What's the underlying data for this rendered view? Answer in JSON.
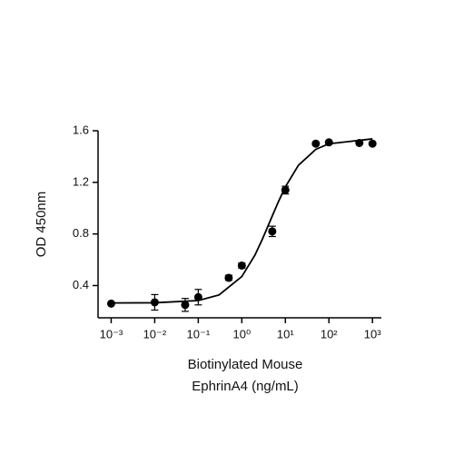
{
  "chart_data": {
    "type": "scatter",
    "xscale": "log",
    "xlabel": [
      "Biotinylated Mouse",
      "EphrinA4 (ng/mL)"
    ],
    "ylabel": "OD 450nm",
    "xlim": [
      0.0005,
      1600
    ],
    "ylim": [
      0.15,
      1.6
    ],
    "xticks": [
      {
        "value": 0.001,
        "label": "10⁻³"
      },
      {
        "value": 0.01,
        "label": "10⁻²"
      },
      {
        "value": 0.1,
        "label": "10⁻¹"
      },
      {
        "value": 1,
        "label": "10⁰"
      },
      {
        "value": 10,
        "label": "10¹"
      },
      {
        "value": 100,
        "label": "10²"
      },
      {
        "value": 1000,
        "label": "10³"
      }
    ],
    "yticks": [
      0.4,
      0.8,
      1.2,
      1.6
    ],
    "series": [
      {
        "color": "#000000",
        "x": [
          0.001,
          0.01,
          0.05,
          0.1,
          0.5,
          1,
          5,
          10,
          50,
          100,
          500,
          1000
        ],
        "values": [
          0.26,
          0.27,
          0.25,
          0.31,
          0.46,
          0.555,
          0.82,
          1.14,
          1.5,
          1.51,
          1.505,
          1.5
        ],
        "errors": [
          null,
          0.06,
          0.05,
          0.06,
          0.02,
          0.02,
          0.04,
          0.03,
          null,
          null,
          null,
          null
        ]
      }
    ],
    "fit": {
      "color": "#000000",
      "x": [
        0.001,
        0.01,
        0.1,
        0.3,
        1,
        2,
        3,
        5,
        7,
        10,
        20,
        50,
        100,
        1000
      ],
      "values": [
        0.265,
        0.2665,
        0.284,
        0.327,
        0.47,
        0.636,
        0.763,
        0.939,
        1.054,
        1.165,
        1.333,
        1.456,
        1.499,
        1.537
      ]
    }
  }
}
